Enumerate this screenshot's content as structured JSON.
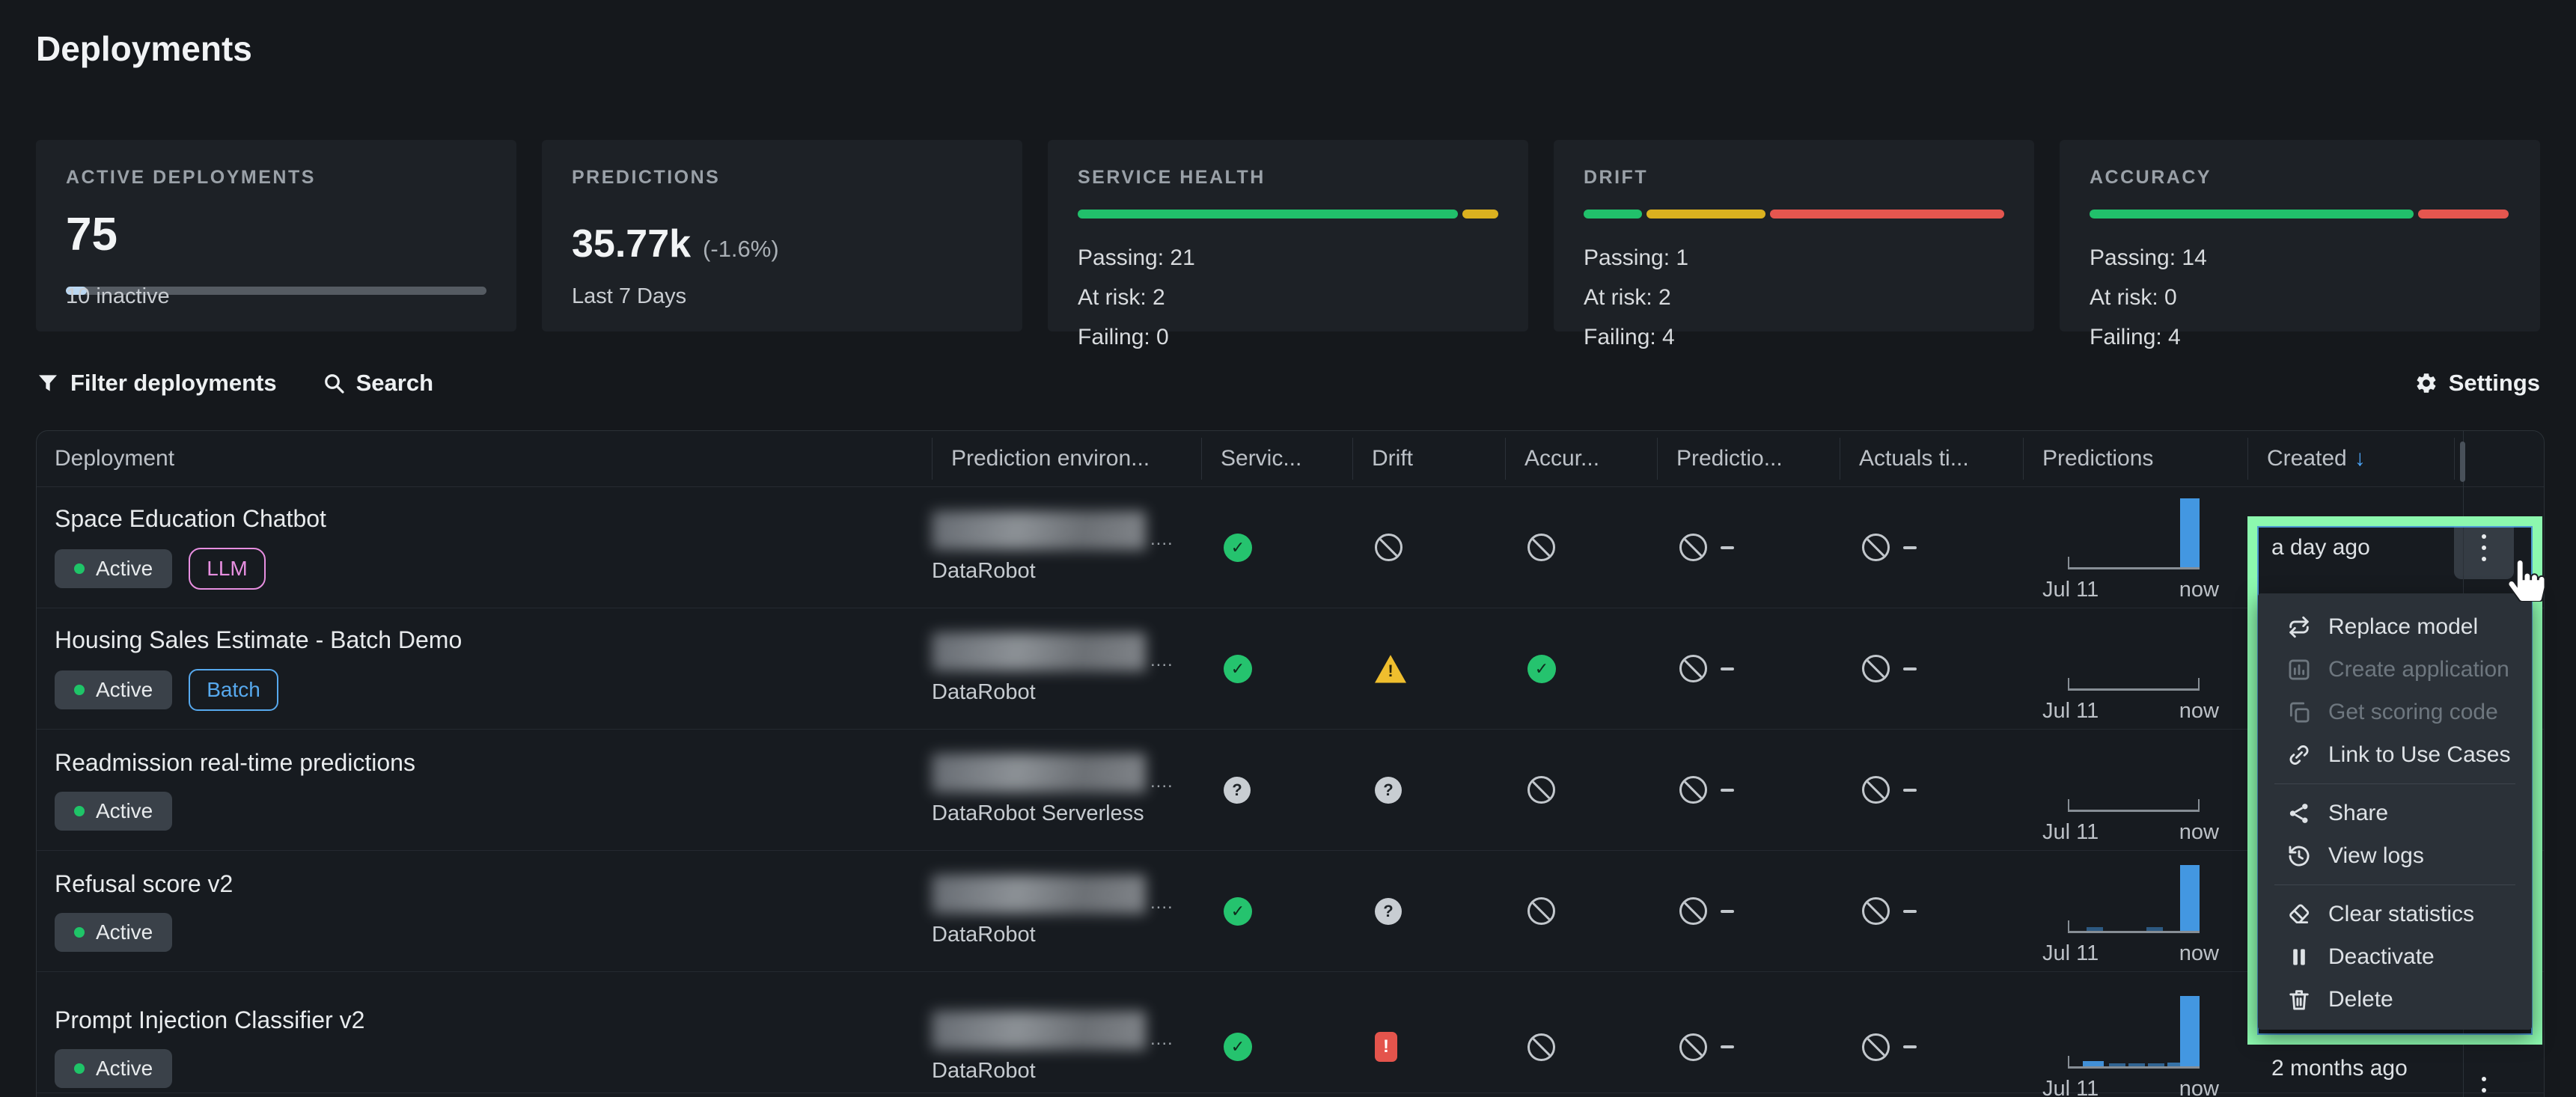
{
  "page": {
    "title": "Deployments"
  },
  "cards": [
    {
      "label": "ACTIVE DEPLOYMENTS",
      "value": "75",
      "caption": "10 inactive",
      "fill_pct": 5,
      "fill_color": "#BAD7F1"
    },
    {
      "label": "PREDICTIONS",
      "value": "35.77k",
      "delta": "(-1.6%)",
      "caption": "Last 7 Days"
    },
    {
      "label": "SERVICE HEALTH",
      "stats": [
        "Passing: 21",
        "At risk: 2",
        "Failing: 0"
      ],
      "segments": [
        {
          "pct": 90.5,
          "color": "#21C06B"
        },
        {
          "pct": 8.5,
          "color": "#DBB11F"
        }
      ]
    },
    {
      "label": "DRIFT",
      "stats": [
        "Passing: 1",
        "At risk: 2",
        "Failing: 4"
      ],
      "segments": [
        {
          "pct": 14,
          "color": "#21C06B"
        },
        {
          "pct": 28.5,
          "color": "#DBB11F"
        },
        {
          "pct": 56,
          "color": "#E5564F"
        }
      ]
    },
    {
      "label": "ACCURACY",
      "stats": [
        "Passing: 14",
        "At risk: 0",
        "Failing: 4"
      ],
      "segments": [
        {
          "pct": 77,
          "color": "#21C06B"
        },
        {
          "pct": 21.5,
          "color": "#E5564F"
        }
      ]
    }
  ],
  "toolbar": {
    "filter_label": "Filter deployments",
    "search_label": "Search",
    "settings_label": "Settings"
  },
  "table": {
    "columns": [
      "Deployment",
      "Prediction environ...",
      "Servic...",
      "Drift",
      "Accur...",
      "Predictio...",
      "Actuals ti...",
      "Predictions",
      "Created"
    ],
    "sort": {
      "column": "Created",
      "direction": "desc"
    },
    "sort_arrow": "↓",
    "env_truncation": "....",
    "spark_start_label": "Jul 11",
    "spark_end_label": "now",
    "rows": [
      {
        "name": "Space Education Chatbot",
        "status": "Active",
        "tag": "LLM",
        "tag_style": "llm",
        "environment": "DataRobot",
        "service": "pass",
        "drift": "none",
        "accuracy": "none",
        "prediction_timeliness": "none",
        "actuals_timeliness": "none",
        "spark_bars": [
          [
            150,
            26,
            92,
            1
          ]
        ],
        "created": "a day ago"
      },
      {
        "name": "Housing Sales Estimate - Batch Demo",
        "status": "Active",
        "tag": "Batch",
        "tag_style": "batch",
        "environment": "DataRobot",
        "service": "pass",
        "drift": "warn",
        "accuracy": "pass",
        "prediction_timeliness": "none",
        "actuals_timeliness": "none",
        "spark_bars": [],
        "created": ""
      },
      {
        "name": "Readmission real-time predictions",
        "status": "Active",
        "environment": "DataRobot Serverless",
        "service": "unknown",
        "drift": "unknown",
        "accuracy": "none",
        "prediction_timeliness": "none",
        "actuals_timeliness": "none",
        "spark_bars": [],
        "created": ""
      },
      {
        "name": "Refusal score v2",
        "status": "Active",
        "environment": "DataRobot",
        "service": "pass",
        "drift": "unknown",
        "accuracy": "none",
        "prediction_timeliness": "none",
        "actuals_timeliness": "none",
        "spark_bars": [
          [
            25,
            22,
            5,
            0.5
          ],
          [
            105,
            22,
            5,
            0.5
          ],
          [
            150,
            26,
            88,
            1
          ]
        ],
        "created": ""
      },
      {
        "name": "Prompt Injection Classifier v2",
        "status": "Active",
        "environment": "DataRobot",
        "service": "pass",
        "drift": "fail",
        "accuracy": "none",
        "prediction_timeliness": "none",
        "actuals_timeliness": "none",
        "spark_bars": [
          [
            20,
            28,
            7,
            0.95
          ],
          [
            55,
            22,
            4,
            0.6
          ],
          [
            81,
            22,
            4,
            0.6
          ],
          [
            107,
            22,
            4,
            0.6
          ],
          [
            133,
            18,
            5,
            0.7
          ],
          [
            150,
            26,
            94,
            1
          ]
        ],
        "created": "2 months ago"
      }
    ]
  },
  "context_menu": {
    "groups": [
      [
        {
          "label": "Replace model",
          "icon": "replace-model-icon",
          "enabled": true
        },
        {
          "label": "Create application",
          "icon": "create-application-icon",
          "enabled": false
        },
        {
          "label": "Get scoring code",
          "icon": "get-scoring-code-icon",
          "enabled": false
        },
        {
          "label": "Link to Use Cases",
          "icon": "link-use-cases-icon",
          "enabled": true
        }
      ],
      [
        {
          "label": "Share",
          "icon": "share-icon",
          "enabled": true
        },
        {
          "label": "View logs",
          "icon": "view-logs-icon",
          "enabled": true
        }
      ],
      [
        {
          "label": "Clear statistics",
          "icon": "clear-statistics-icon",
          "enabled": true
        },
        {
          "label": "Deactivate",
          "icon": "deactivate-icon",
          "enabled": true
        },
        {
          "label": "Delete",
          "icon": "delete-icon",
          "enabled": true
        }
      ]
    ]
  }
}
